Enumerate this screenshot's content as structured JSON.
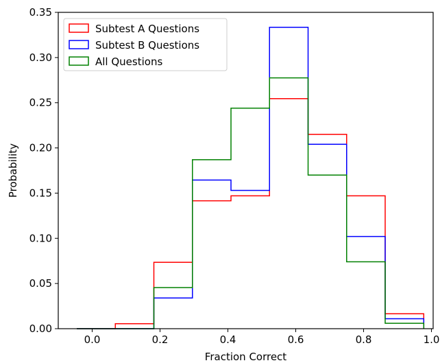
{
  "chart_data": {
    "type": "histogram-step",
    "xlabel": "Fraction Correct",
    "ylabel": "Probability",
    "xlim": [
      -0.1,
      1.005
    ],
    "ylim": [
      0.0,
      0.35
    ],
    "xticks": [
      0.0,
      0.2,
      0.4,
      0.6,
      0.8,
      1.0
    ],
    "xtick_labels": [
      "0.0",
      "0.2",
      "0.4",
      "0.6",
      "0.8",
      "1.0"
    ],
    "yticks": [
      0.0,
      0.05,
      0.1,
      0.15,
      0.2,
      0.25,
      0.3,
      0.35
    ],
    "ytick_labels": [
      "0.00",
      "0.05",
      "0.10",
      "0.15",
      "0.20",
      "0.25",
      "0.30",
      "0.35"
    ],
    "bin_edges": [
      -0.0455,
      0.0682,
      0.1818,
      0.2955,
      0.4091,
      0.5227,
      0.6364,
      0.75,
      0.8636,
      0.9773
    ],
    "legend_position": "upper-left",
    "series": [
      {
        "name": "Subtest A Questions",
        "color": "#ff0000",
        "values": [
          0.0,
          0.0055,
          0.0735,
          0.1415,
          0.147,
          0.2545,
          0.215,
          0.147,
          0.0165
        ]
      },
      {
        "name": "Subtest B Questions",
        "color": "#0000ff",
        "values": [
          0.0,
          0.0,
          0.034,
          0.1645,
          0.153,
          0.3335,
          0.204,
          0.102,
          0.011
        ]
      },
      {
        "name": "All Questions",
        "color": "#008000",
        "values": [
          0.0,
          0.0,
          0.0455,
          0.187,
          0.244,
          0.2775,
          0.17,
          0.074,
          0.006
        ]
      }
    ]
  }
}
